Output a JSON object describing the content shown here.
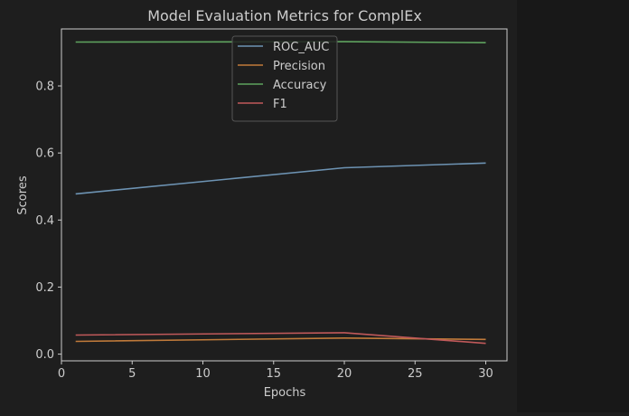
{
  "chart_data": {
    "type": "line",
    "title": "Model Evaluation Metrics for ComplEx",
    "xlabel": "Epochs",
    "ylabel": "Scores",
    "xlim": [
      0,
      31.5
    ],
    "ylim": [
      -0.02,
      0.97
    ],
    "xticks": [
      0,
      5,
      10,
      15,
      20,
      25,
      30
    ],
    "yticks": [
      0.0,
      0.2,
      0.4,
      0.6,
      0.8
    ],
    "ytick_labels": [
      "0.0",
      "0.2",
      "0.4",
      "0.6",
      "0.8"
    ],
    "grid": false,
    "legend_position": "top-center",
    "x": [
      1,
      20,
      30
    ],
    "series": [
      {
        "name": "ROC_AUC",
        "color": "#6d93b3",
        "values": [
          0.478,
          0.556,
          0.57
        ]
      },
      {
        "name": "Precision",
        "color": "#c07a3a",
        "values": [
          0.038,
          0.048,
          0.044
        ]
      },
      {
        "name": "Accuracy",
        "color": "#5fa35f",
        "values": [
          0.931,
          0.932,
          0.929
        ]
      },
      {
        "name": "F1",
        "color": "#c0595a",
        "values": [
          0.057,
          0.064,
          0.032
        ]
      }
    ]
  },
  "colors": {
    "background": "#1e1e1e",
    "axes": "#cccccc",
    "text": "#cccccc",
    "legend_face": "#1e1e1e",
    "legend_edge": "#555555"
  }
}
